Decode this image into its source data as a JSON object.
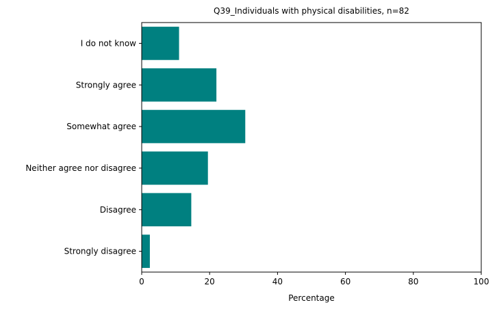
{
  "chart_data": {
    "type": "bar",
    "orientation": "horizontal",
    "title": "Q39_Individuals with physical disabilities, n=82",
    "xlabel": "Percentage",
    "ylabel": "",
    "categories": [
      "Strongly disagree",
      "Disagree",
      "Neither agree nor disagree",
      "Somewhat agree",
      "Strongly agree",
      "I do not know"
    ],
    "values": [
      2.4,
      14.6,
      19.5,
      30.5,
      22.0,
      11.0
    ],
    "xlim": [
      0,
      100
    ],
    "xticks": [
      "0",
      "20",
      "40",
      "60",
      "80",
      "100"
    ],
    "grid": false,
    "bar_color": "#008080"
  }
}
